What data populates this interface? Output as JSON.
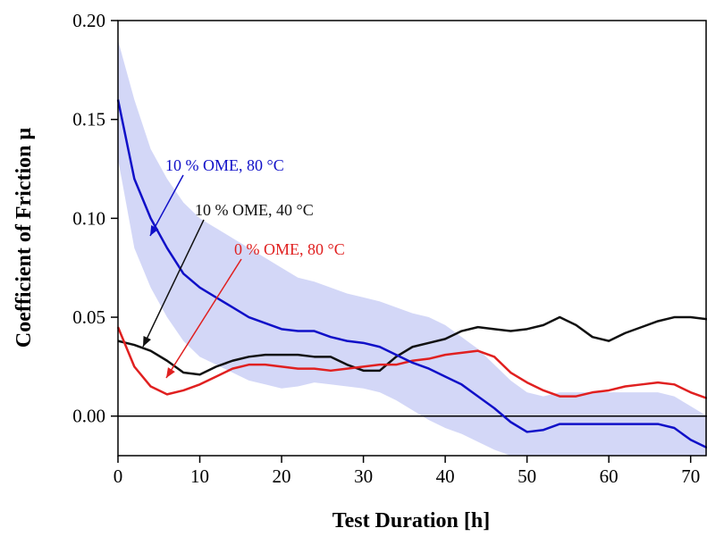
{
  "chart_data": {
    "type": "line",
    "xlabel": "Test Duration [h]",
    "ylabel": "Coefficient of Friction μ",
    "x": [
      0,
      2,
      4,
      6,
      8,
      10,
      12,
      14,
      16,
      18,
      20,
      22,
      24,
      26,
      28,
      30,
      32,
      34,
      36,
      38,
      40,
      42,
      44,
      46,
      48,
      50,
      52,
      54,
      56,
      58,
      60,
      62,
      64,
      66,
      68,
      70,
      72
    ],
    "series": [
      {
        "name": "10 % OME, 80 °C",
        "color": "#1010c8",
        "values": [
          0.16,
          0.12,
          0.1,
          0.085,
          0.072,
          0.065,
          0.06,
          0.055,
          0.05,
          0.047,
          0.044,
          0.043,
          0.043,
          0.04,
          0.038,
          0.037,
          0.035,
          0.031,
          0.027,
          0.024,
          0.02,
          0.016,
          0.01,
          0.004,
          -0.003,
          -0.008,
          -0.007,
          -0.004,
          -0.004,
          -0.004,
          -0.004,
          -0.004,
          -0.004,
          -0.004,
          -0.006,
          -0.012,
          -0.016
        ],
        "band_color": "#c8cdf5",
        "band_upper": [
          0.19,
          0.16,
          0.135,
          0.12,
          0.108,
          0.1,
          0.095,
          0.09,
          0.085,
          0.08,
          0.075,
          0.07,
          0.068,
          0.065,
          0.062,
          0.06,
          0.058,
          0.055,
          0.052,
          0.05,
          0.046,
          0.04,
          0.034,
          0.026,
          0.018,
          0.012,
          0.01,
          0.012,
          0.012,
          0.012,
          0.012,
          0.012,
          0.012,
          0.012,
          0.01,
          0.005,
          0.0
        ],
        "band_lower": [
          0.13,
          0.085,
          0.065,
          0.05,
          0.038,
          0.03,
          0.026,
          0.022,
          0.018,
          0.016,
          0.014,
          0.015,
          0.017,
          0.016,
          0.015,
          0.014,
          0.012,
          0.008,
          0.003,
          -0.002,
          -0.006,
          -0.009,
          -0.013,
          -0.017,
          -0.02,
          -0.02,
          -0.02,
          -0.02,
          -0.02,
          -0.02,
          -0.02,
          -0.02,
          -0.02,
          -0.02,
          -0.02,
          -0.02,
          -0.02
        ]
      },
      {
        "name": "10 % OME, 40 °C",
        "color": "#111111",
        "values": [
          0.038,
          0.036,
          0.033,
          0.028,
          0.022,
          0.021,
          0.025,
          0.028,
          0.03,
          0.031,
          0.031,
          0.031,
          0.03,
          0.03,
          0.026,
          0.023,
          0.023,
          0.03,
          0.035,
          0.037,
          0.039,
          0.043,
          0.045,
          0.044,
          0.043,
          0.044,
          0.046,
          0.05,
          0.046,
          0.04,
          0.038,
          0.042,
          0.045,
          0.048,
          0.05,
          0.05,
          0.049
        ]
      },
      {
        "name": "0 % OME, 80 °C",
        "color": "#e02020",
        "values": [
          0.045,
          0.025,
          0.015,
          0.011,
          0.013,
          0.016,
          0.02,
          0.024,
          0.026,
          0.026,
          0.025,
          0.024,
          0.024,
          0.023,
          0.024,
          0.025,
          0.026,
          0.026,
          0.028,
          0.029,
          0.031,
          0.032,
          0.033,
          0.03,
          0.022,
          0.017,
          0.013,
          0.01,
          0.01,
          0.012,
          0.013,
          0.015,
          0.016,
          0.017,
          0.016,
          0.012,
          0.009
        ]
      }
    ],
    "xlim": [
      0,
      72
    ],
    "xticks": [
      0,
      10,
      20,
      30,
      40,
      50,
      60,
      70
    ],
    "ylim": [
      -0.02,
      0.2
    ],
    "yticks": [
      {
        "value": 0,
        "label": "0.00"
      },
      {
        "value": 0.05,
        "label": "0.05"
      },
      {
        "value": 0.1,
        "label": "0.10"
      },
      {
        "value": 0.15,
        "label": "0.15"
      },
      {
        "value": 0.2,
        "label": "0.20"
      }
    ],
    "zero_line": 0
  }
}
